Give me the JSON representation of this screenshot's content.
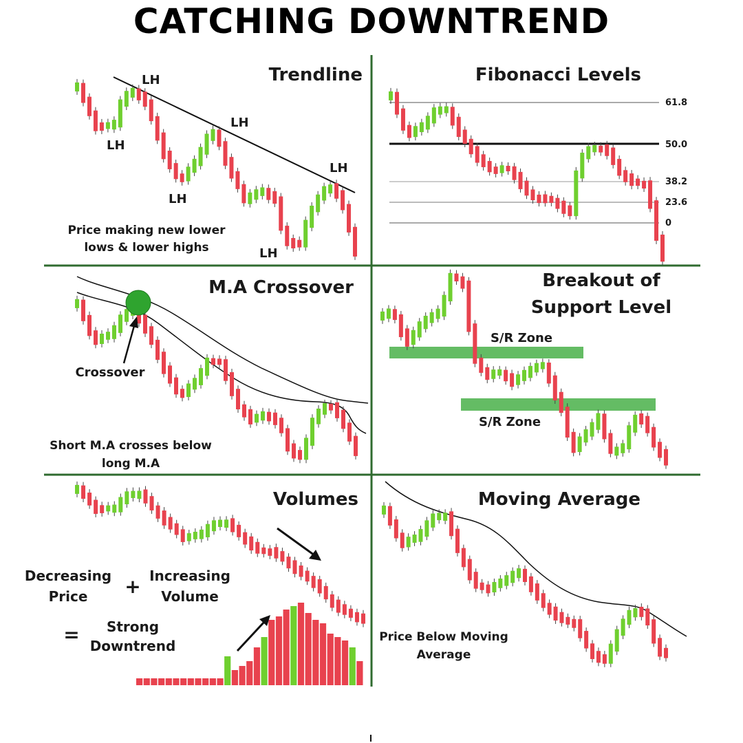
{
  "title": "CATCHING DOWNTREND",
  "colors": {
    "bull": "#6fcf2f",
    "bear": "#e8424e",
    "zone": "#5cb85c",
    "divider": "#2f6b2f",
    "marker": "#2fa42f",
    "line": "#111111"
  },
  "panels": {
    "trendline": {
      "heading": "Trendline",
      "labels": [
        "LH",
        "LH",
        "LH",
        "LH",
        "LH",
        "LH"
      ],
      "caption": [
        "Price making new lower",
        "lows & lower highs"
      ]
    },
    "fibonacci": {
      "heading": "Fibonacci Levels",
      "levels": [
        "61.8",
        "50.0",
        "38.2",
        "23.6",
        "0"
      ]
    },
    "ma_crossover": {
      "heading": "M.A Crossover",
      "marker_label": "Crossover",
      "caption": [
        "Short M.A crosses below",
        "long M.A"
      ]
    },
    "breakout": {
      "heading": [
        "Breakout of",
        "Support Level"
      ],
      "zone_labels": [
        "S/R Zone",
        "S/R Zone"
      ]
    },
    "volumes": {
      "heading": "Volumes",
      "left_term": [
        "Decreasing",
        "Price"
      ],
      "plus": "+",
      "right_term": [
        "Increasing",
        "Volume"
      ],
      "equals": "=",
      "result": [
        "Strong",
        "Downtrend"
      ]
    },
    "moving_average": {
      "heading": "Moving Average",
      "caption": [
        "Price Below Moving",
        "Average"
      ]
    }
  }
}
